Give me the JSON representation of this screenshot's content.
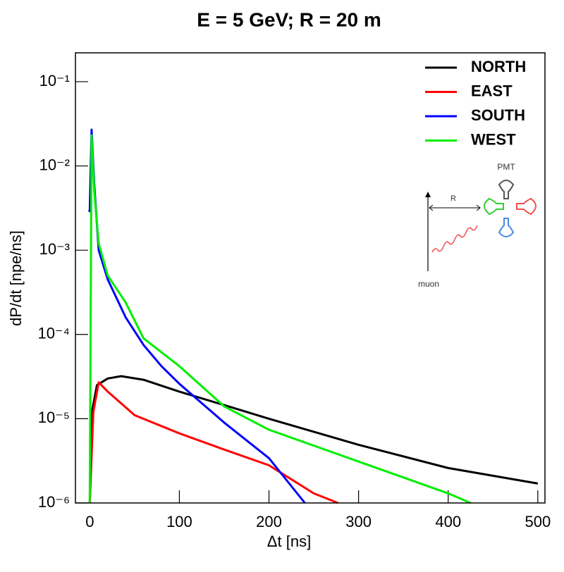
{
  "chart_data": {
    "type": "line",
    "title": "E = 5 GeV; R = 20 m",
    "x_label": "Δt [ns]",
    "y_label": "dP/dt [npe/ns]",
    "xlim": [
      -16,
      508
    ],
    "xticks": [
      0,
      100,
      200,
      300,
      400,
      500
    ],
    "ylim": [
      1e-06,
      0.22
    ],
    "yscale": "log",
    "yticks": [
      {
        "value": 1e-06,
        "label": "10⁻⁶"
      },
      {
        "value": 1e-05,
        "label": "10⁻⁵"
      },
      {
        "value": 0.0001,
        "label": "10⁻⁴"
      },
      {
        "value": 0.001,
        "label": "10⁻³"
      },
      {
        "value": 0.01,
        "label": "10⁻²"
      },
      {
        "value": 0.1,
        "label": "10⁻¹"
      }
    ],
    "legend": "upper right",
    "series": [
      {
        "name": "NORTH",
        "color": "#000000",
        "x": [
          0,
          3,
          8,
          20,
          35,
          60,
          100,
          150,
          200,
          300,
          400,
          500
        ],
        "values": [
          1e-06,
          1.3e-05,
          2.5e-05,
          3e-05,
          3.2e-05,
          2.9e-05,
          2.1e-05,
          1.45e-05,
          1e-05,
          4.9e-06,
          2.6e-06,
          1.7e-06
        ]
      },
      {
        "name": "EAST",
        "color": "#ff0000",
        "x": [
          0,
          4,
          10,
          20,
          50,
          100,
          150,
          200,
          250,
          277
        ],
        "values": [
          1e-06,
          1.2e-05,
          2.7e-05,
          2.1e-05,
          1.1e-05,
          6.7e-06,
          4.3e-06,
          2.8e-06,
          1.3e-06,
          1e-06
        ]
      },
      {
        "name": "SOUTH",
        "color": "#0000ff",
        "x": [
          -1,
          0,
          2,
          5,
          10,
          20,
          40,
          60,
          80,
          100,
          150,
          200,
          240
        ],
        "values": [
          0.003,
          0.0029,
          0.027,
          0.006,
          0.001,
          0.00045,
          0.00016,
          7.5e-05,
          4.2e-05,
          2.6e-05,
          9e-06,
          3.4e-06,
          1e-06
        ]
      },
      {
        "name": "WEST",
        "color": "#00ee00",
        "x": [
          0,
          2,
          5,
          10,
          20,
          40,
          60,
          100,
          150,
          200,
          300,
          400,
          425
        ],
        "values": [
          1e-06,
          0.023,
          0.005,
          0.0012,
          0.0005,
          0.00024,
          9e-05,
          4.2e-05,
          1.4e-05,
          7.4e-06,
          3.1e-06,
          1.3e-06,
          1e-06
        ]
      }
    ],
    "annotations": [
      "PMT",
      "R",
      "muon"
    ]
  }
}
